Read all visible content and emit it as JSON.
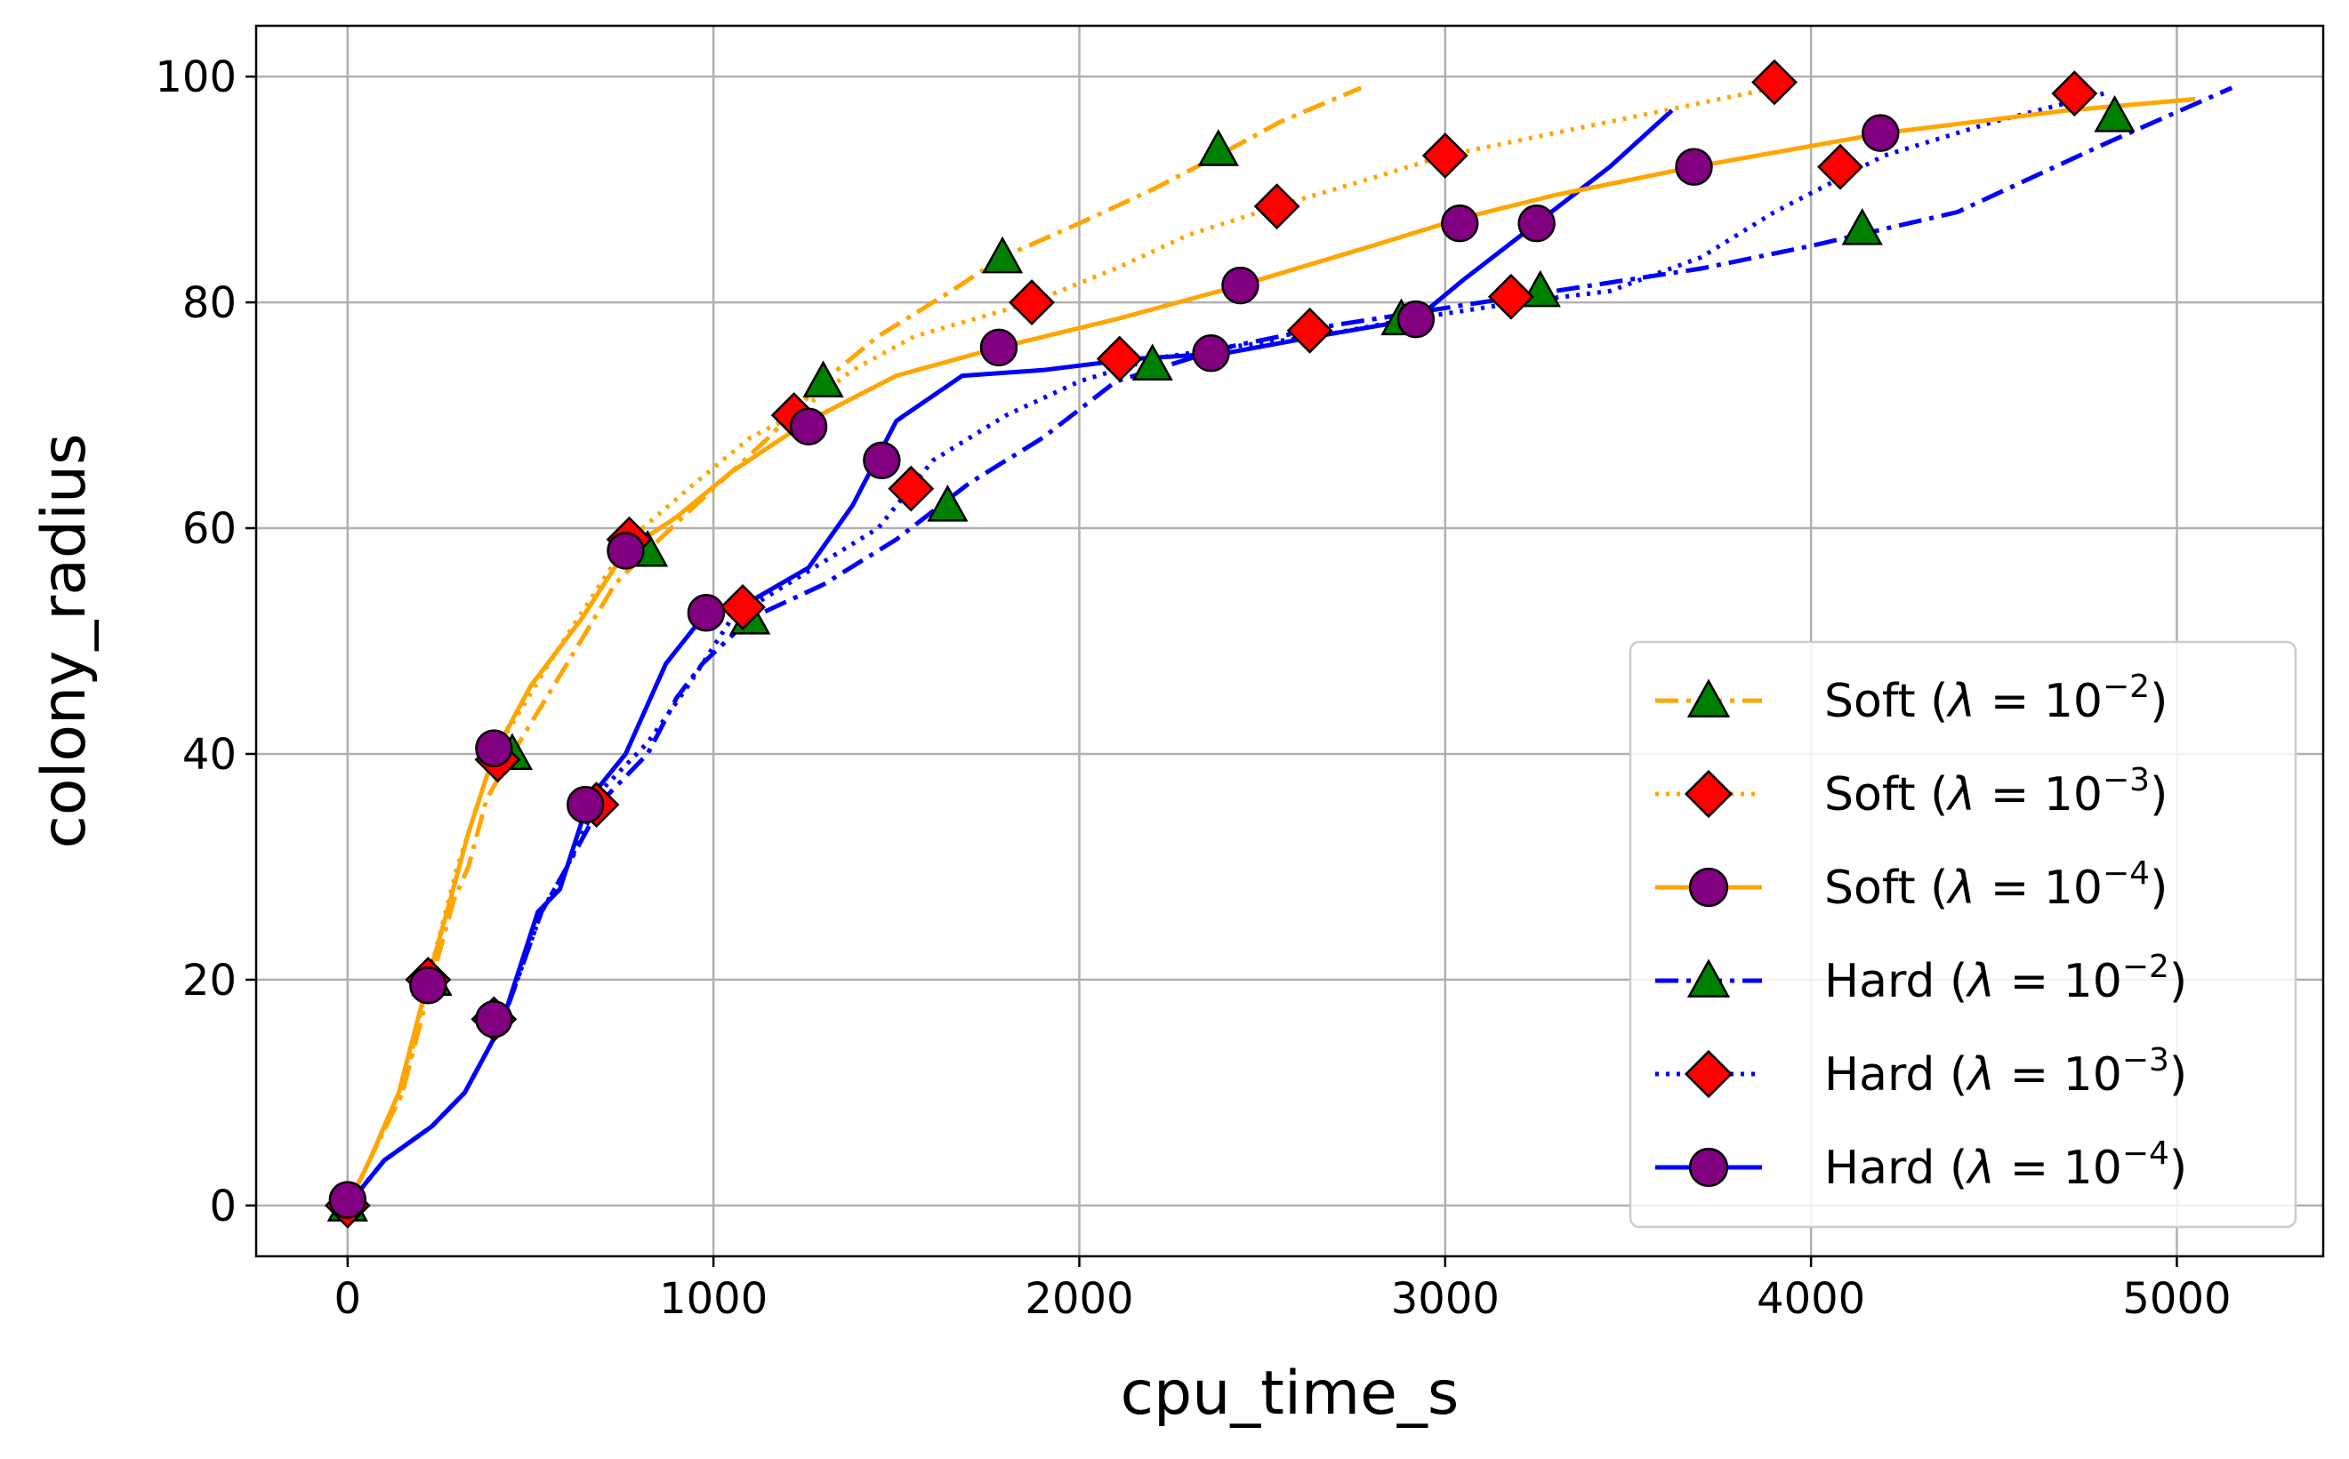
{
  "chart_data": {
    "type": "line",
    "xlabel": "cpu_time_s",
    "ylabel": "colony_radius",
    "xlim": [
      -250,
      5400
    ],
    "ylim": [
      -4.5,
      104.5
    ],
    "xticks": [
      0,
      1000,
      2000,
      3000,
      4000,
      5000
    ],
    "yticks": [
      0,
      20,
      40,
      60,
      80,
      100
    ],
    "grid": true,
    "legend_position": "bottom-right",
    "series": [
      {
        "name": "Soft (λ = 10⁻²)",
        "legend_main": "Soft (",
        "legend_sup": "−2",
        "color": "#ffa500",
        "dash": "dashdot",
        "marker": "triangle",
        "marker_color": "#008000",
        "x": [
          0,
          60,
          150,
          230,
          290,
          330,
          380,
          450,
          600,
          730,
          820,
          950,
          1150,
          1300,
          1450,
          1650,
          1790,
          2000,
          2200,
          2380,
          2550,
          2770
        ],
        "y": [
          0,
          4,
          10,
          20,
          27,
          30,
          36,
          40,
          48,
          55,
          58,
          62,
          68,
          73,
          77,
          81,
          84,
          87,
          90,
          93,
          96,
          99
        ],
        "markers_x": [
          0,
          230,
          450,
          820,
          1100,
          1300,
          1640,
          1790,
          2200,
          2380,
          2880,
          3260,
          4140,
          4830
        ],
        "markers_y": [
          0,
          20,
          40,
          58,
          52,
          73,
          62,
          84,
          74.5,
          93.5,
          78.5,
          81,
          86.5,
          96.5
        ]
      },
      {
        "name": "Soft (λ = 10⁻³)",
        "legend_main": "Soft (",
        "legend_sup": "−3",
        "color": "#ffa500",
        "dash": "dotted",
        "marker": "diamond",
        "marker_color": "#ff0000",
        "x": [
          0,
          60,
          150,
          220,
          300,
          400,
          550,
          770,
          950,
          1100,
          1220,
          1380,
          1550,
          1870,
          2100,
          2300,
          2540,
          2800,
          3000,
          3300,
          3600,
          3900
        ],
        "y": [
          0,
          4,
          10,
          20,
          30,
          40,
          48,
          59,
          64,
          68,
          70,
          74,
          77,
          80,
          83,
          86,
          88.5,
          91,
          93,
          95,
          97,
          99
        ],
        "markers_x": [
          0,
          220,
          400,
          410,
          680,
          770,
          1080,
          1220,
          1540,
          1870,
          2110,
          2540,
          2630,
          3000,
          3180,
          3900,
          4080,
          4720
        ],
        "markers_y": [
          0,
          20,
          16.5,
          39.5,
          35.5,
          59,
          53,
          70,
          63.5,
          80,
          75,
          88.5,
          77.5,
          93,
          80.5,
          99.5,
          92,
          98.5
        ]
      },
      {
        "name": "Soft (λ = 10⁻⁴)",
        "legend_main": "Soft (",
        "legend_sup": "−4",
        "color": "#ffa500",
        "dash": "solid",
        "marker": "circle",
        "marker_color": "#800080",
        "x": [
          0,
          60,
          140,
          220,
          280,
          330,
          400,
          500,
          640,
          760,
          900,
          1050,
          1260,
          1500,
          1780,
          2100,
          2440,
          2800,
          3050,
          3300,
          3680,
          4200,
          4700,
          5050
        ],
        "y": [
          0,
          4,
          10,
          20,
          27,
          33,
          40,
          46,
          52,
          58,
          61,
          65,
          69.5,
          73.5,
          76,
          78.5,
          81.5,
          85,
          87.5,
          89.5,
          92,
          95,
          97,
          98
        ],
        "markers_x": [
          0,
          220,
          400,
          400,
          650,
          760,
          980,
          1260,
          1460,
          1780,
          2360,
          2440,
          2920,
          3040,
          3250,
          3680,
          4190
        ],
        "markers_y": [
          0.5,
          19.5,
          16.5,
          40.5,
          35.5,
          58,
          52.5,
          69,
          66,
          76,
          75.5,
          81.5,
          78.5,
          87,
          87,
          92,
          95
        ]
      },
      {
        "name": "Hard (λ = 10⁻²)",
        "legend_main": "Hard (",
        "legend_sup": "−2",
        "color": "#0000ff",
        "dash": "dashdot",
        "marker": "triangle",
        "marker_color": "#008000",
        "x": [
          0,
          100,
          230,
          320,
          420,
          530,
          600,
          700,
          820,
          900,
          970,
          1100,
          1300,
          1500,
          1700,
          1900,
          2100,
          2400,
          2700,
          2900,
          3200,
          3500,
          3700,
          4000,
          4400,
          4800,
          5150
        ],
        "y": [
          0,
          4,
          7,
          10,
          16,
          26,
          30,
          36,
          40,
          45,
          48,
          52,
          55,
          59,
          64,
          68,
          73,
          76,
          78,
          79,
          80.5,
          82,
          83,
          85,
          88,
          94,
          99
        ],
        "markers_x": [],
        "markers_y": []
      },
      {
        "name": "Hard (λ = 10⁻³)",
        "legend_main": "Hard (",
        "legend_sup": "−3",
        "color": "#0000ff",
        "dash": "dotted",
        "marker": "diamond",
        "marker_color": "#ff0000",
        "x": [
          0,
          100,
          230,
          320,
          420,
          530,
          600,
          700,
          820,
          930,
          1050,
          1250,
          1450,
          1600,
          1800,
          2000,
          2200,
          2400,
          2650,
          2900,
          3200,
          3450,
          3700,
          3900,
          4200,
          4500,
          4800
        ],
        "y": [
          0,
          4,
          7,
          10,
          16,
          26,
          30,
          37,
          41,
          46,
          52,
          56,
          60,
          66,
          70,
          73,
          75,
          76,
          77,
          78.5,
          80,
          81,
          84,
          88,
          93,
          96,
          98.5
        ],
        "markers_x": [],
        "markers_y": []
      },
      {
        "name": "Hard (λ = 10⁻⁴)",
        "legend_main": "Hard (",
        "legend_sup": "−4",
        "color": "#0000ff",
        "dash": "solid",
        "marker": "circle",
        "marker_color": "#800080",
        "x": [
          0,
          100,
          230,
          320,
          420,
          520,
          580,
          660,
          760,
          870,
          980,
          1100,
          1260,
          1380,
          1500,
          1680,
          1900,
          2150,
          2400,
          2650,
          2920,
          3050,
          3250,
          3450,
          3620
        ],
        "y": [
          0,
          4,
          7,
          10,
          16,
          26,
          28,
          36,
          40,
          48,
          52.5,
          53.5,
          56.5,
          62,
          69.5,
          73.5,
          74,
          75,
          75.5,
          77,
          78.5,
          82,
          87,
          92,
          97
        ],
        "markers_x": [],
        "markers_y": []
      }
    ]
  }
}
